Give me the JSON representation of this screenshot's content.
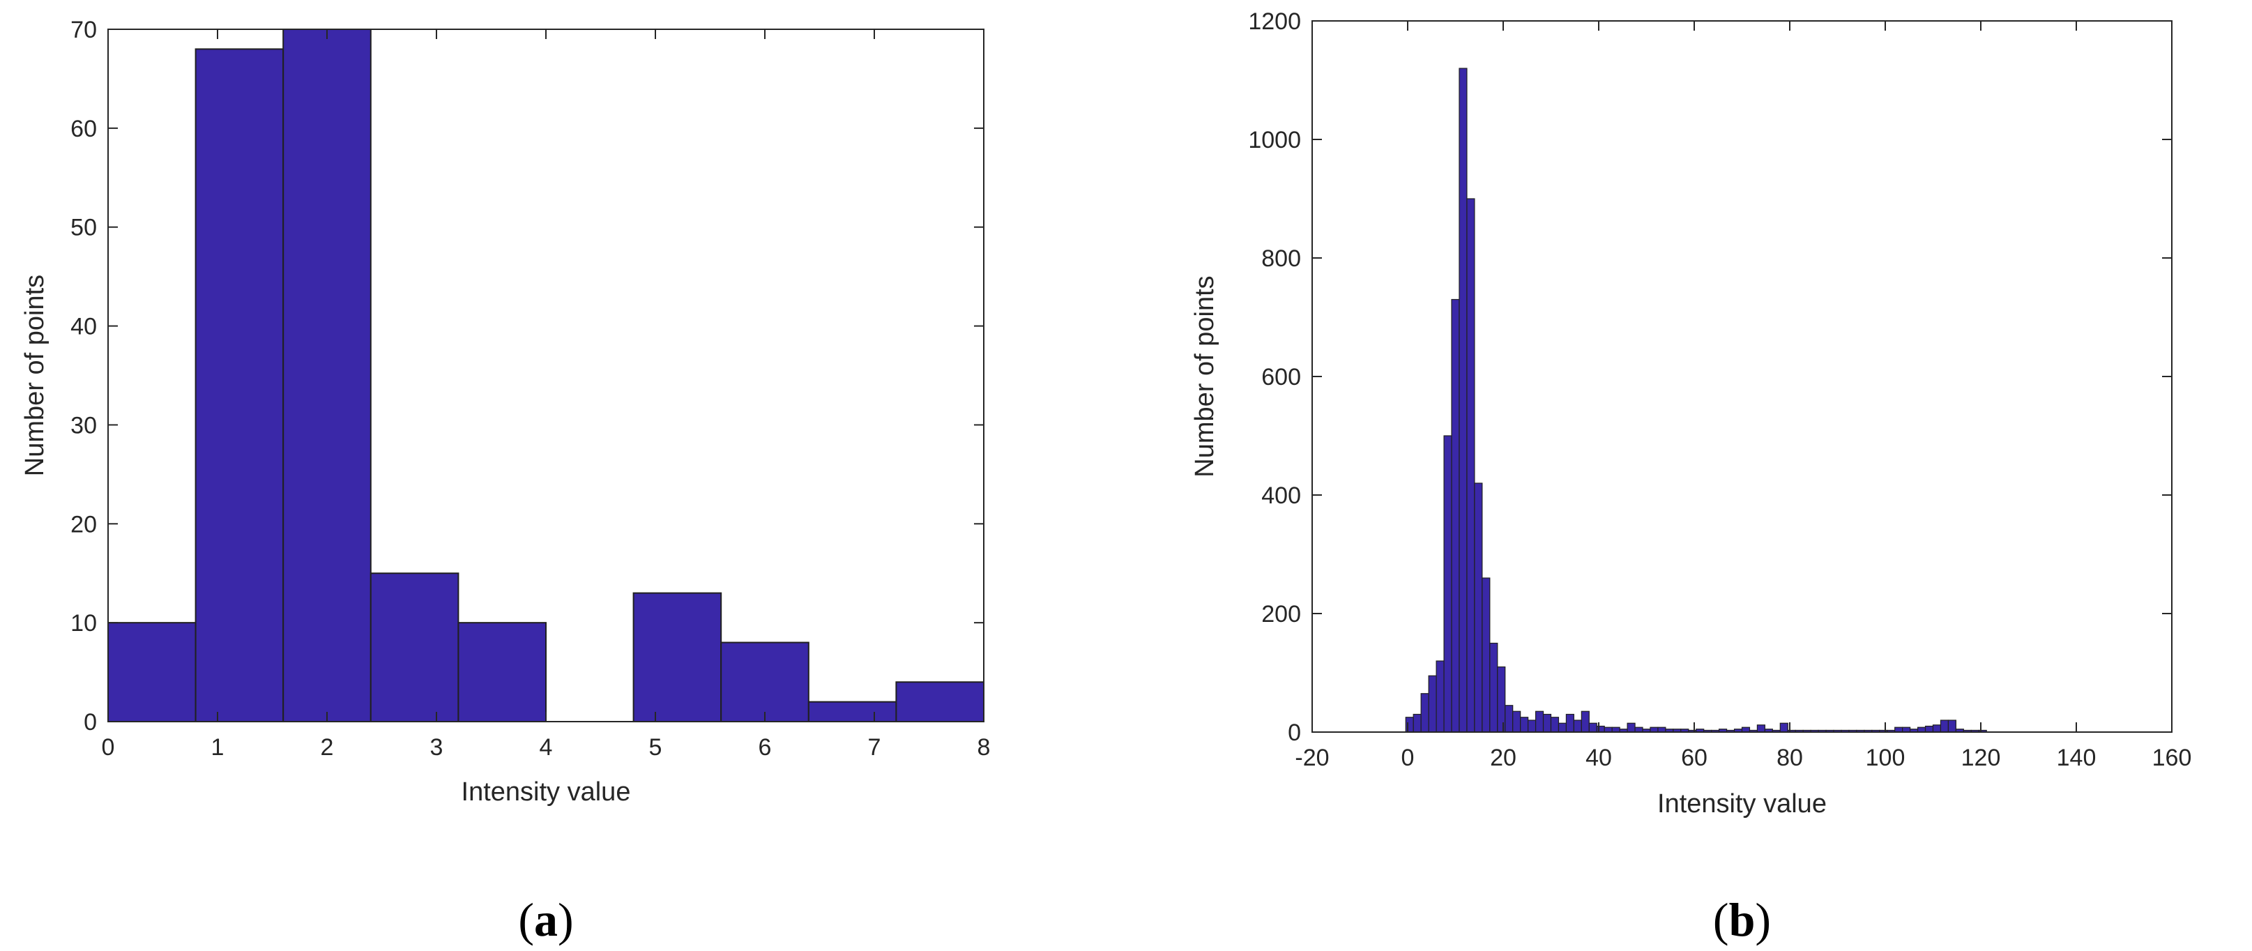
{
  "colors": {
    "bar_fill": "#3a28a8",
    "bar_edge": "#202020",
    "axis": "#262626",
    "background": "#ffffff"
  },
  "chart_data": [
    {
      "panel_label": "a",
      "type": "bar",
      "xlabel": "Intensity value",
      "ylabel": "Number of points",
      "xlim": [
        0,
        8
      ],
      "ylim": [
        0,
        70
      ],
      "xticks": [
        0,
        1,
        2,
        3,
        4,
        5,
        6,
        7,
        8
      ],
      "yticks": [
        0,
        10,
        20,
        30,
        40,
        50,
        60,
        70
      ],
      "grid": false,
      "bin_edges": [
        0,
        0.8,
        1.6,
        2.4,
        3.2,
        4.0,
        4.8,
        5.6,
        6.4,
        7.2,
        8.0
      ],
      "values": [
        10,
        68,
        70,
        15,
        10,
        0,
        13,
        8,
        2,
        4
      ]
    },
    {
      "panel_label": "b",
      "type": "bar",
      "xlabel": "Intensity value",
      "ylabel": "Number of points",
      "xlim": [
        -20,
        160
      ],
      "ylim": [
        0,
        1200
      ],
      "xticks": [
        -20,
        0,
        20,
        40,
        60,
        80,
        100,
        120,
        140,
        160
      ],
      "yticks": [
        0,
        200,
        400,
        600,
        800,
        1000,
        1200
      ],
      "grid": false,
      "bin_start": -2,
      "bin_width": 1.6,
      "values": [
        0,
        25,
        30,
        65,
        95,
        120,
        500,
        730,
        1120,
        900,
        420,
        260,
        150,
        110,
        45,
        35,
        25,
        20,
        35,
        30,
        25,
        15,
        30,
        20,
        35,
        15,
        10,
        8,
        8,
        5,
        15,
        8,
        5,
        8,
        8,
        5,
        5,
        5,
        3,
        5,
        3,
        3,
        5,
        3,
        5,
        8,
        3,
        12,
        5,
        3,
        15,
        3,
        3,
        3,
        3,
        3,
        3,
        3,
        3,
        3,
        3,
        3,
        3,
        3,
        3,
        8,
        8,
        5,
        8,
        10,
        12,
        20,
        20,
        5,
        3,
        3,
        3,
        0
      ]
    }
  ]
}
